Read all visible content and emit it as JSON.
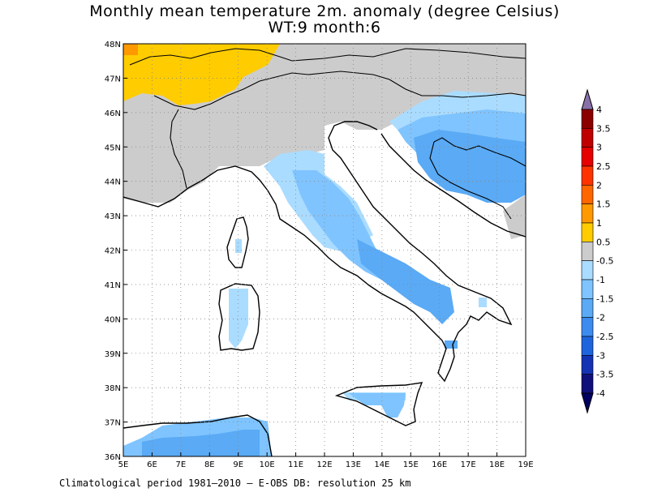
{
  "title": "Monthly mean temperature 2m. anomaly (degree Celsius)",
  "subtitle": "WT:9 month:6",
  "footer": "Climatological period 1981–2010 – E-OBS DB: resolution 25 km",
  "chart_data": {
    "type": "heatmap",
    "x_ticks": [
      "5E",
      "6E",
      "7E",
      "8E",
      "9E",
      "10E",
      "11E",
      "12E",
      "13E",
      "14E",
      "15E",
      "16E",
      "17E",
      "18E",
      "19E"
    ],
    "y_ticks": [
      "48N",
      "47N",
      "46N",
      "45N",
      "44N",
      "43N",
      "42N",
      "41N",
      "40N",
      "39N",
      "38N",
      "37N",
      "36N"
    ],
    "xlim": [
      5,
      19
    ],
    "ylim": [
      36,
      48
    ],
    "colorbar": {
      "labels": [
        "4",
        "3.5",
        "3",
        "2.5",
        "2",
        "1.5",
        "1",
        "0.5",
        "-0.5",
        "-1",
        "-1.5",
        "-2",
        "-2.5",
        "-3",
        "-3.5",
        "-4"
      ],
      "colors": [
        "#5a0000",
        "#8b0000",
        "#c00000",
        "#e60000",
        "#ff3300",
        "#ff6600",
        "#ff9900",
        "#ffcc00",
        "#cccccc",
        "#aadcff",
        "#7fc4ff",
        "#5aaaf5",
        "#3c8cf0",
        "#1e64dc",
        "#1432b4",
        "#10107a",
        "#000060"
      ]
    },
    "grid": "dotted",
    "legend_position": "right"
  }
}
